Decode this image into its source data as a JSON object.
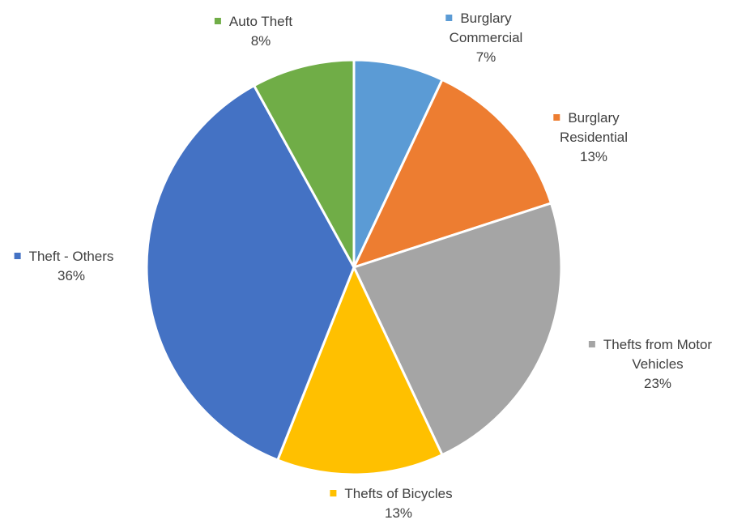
{
  "chart_data": {
    "type": "pie",
    "title": "",
    "categories": [
      "Burglary Commercial",
      "Burglary Residential",
      "Thefts from Motor Vehicles",
      "Thefts of Bicycles",
      "Theft - Others",
      "Auto Theft"
    ],
    "values": [
      7,
      13,
      23,
      13,
      36,
      8
    ],
    "value_labels": [
      "7%",
      "13%",
      "23%",
      "13%",
      "36%",
      "8%"
    ],
    "label_lines": [
      [
        "Burglary",
        "Commercial"
      ],
      [
        "Burglary",
        "Residential"
      ],
      [
        "Thefts from Motor",
        "Vehicles"
      ],
      [
        "Thefts of Bicycles"
      ],
      [
        "Theft - Others"
      ],
      [
        "Auto Theft"
      ]
    ],
    "colors": [
      "#5B9BD5",
      "#ED7D31",
      "#A5A5A5",
      "#FFC000",
      "#4472C4",
      "#70AD47"
    ],
    "start_angle_deg": 0,
    "direction": "clockwise",
    "legend": "none",
    "data_labels": "outside-with-marker"
  }
}
